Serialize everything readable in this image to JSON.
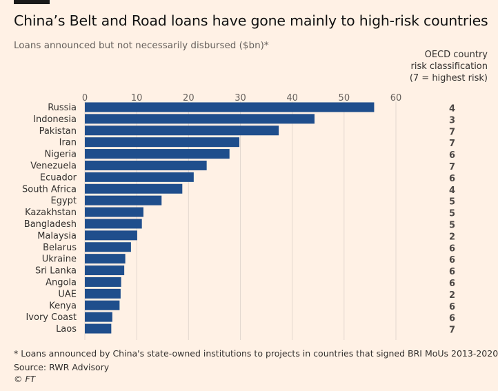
{
  "title": "China’s Belt and Road loans have gone mainly to high-risk countries",
  "subtitle": "Loans announced but not necessarily disbursed ($bn)*",
  "risk_header": {
    "line1": "OECD country",
    "line2": "risk classification",
    "line3": "(7 = highest risk)"
  },
  "footnote": "* Loans announced by China's state-owned institutions to projects in countries that signed BRI MoUs 2013-2020",
  "source": "Source: RWR Advisory",
  "credit_symbol": "©",
  "credit_name": "FT",
  "colors": {
    "bar": "#1F4E8C",
    "grid": "#E3D8CF",
    "background": "#FFF1E5"
  },
  "chart_data": {
    "type": "bar",
    "orientation": "horizontal",
    "categories": [
      "Russia",
      "Indonesia",
      "Pakistan",
      "Iran",
      "Nigeria",
      "Venezuela",
      "Ecuador",
      "South Africa",
      "Egypt",
      "Kazakhstan",
      "Bangladesh",
      "Malaysia",
      "Belarus",
      "Ukraine",
      "Sri Lanka",
      "Angola",
      "UAE",
      "Kenya",
      "Ivory Coast",
      "Laos"
    ],
    "values": [
      55.8,
      44.3,
      37.4,
      29.8,
      27.9,
      23.5,
      21.0,
      18.8,
      14.8,
      11.3,
      11.0,
      10.1,
      8.9,
      7.8,
      7.6,
      7.0,
      6.9,
      6.7,
      5.3,
      5.1
    ],
    "risk_classification": [
      4,
      3,
      7,
      7,
      6,
      7,
      6,
      4,
      5,
      5,
      5,
      2,
      6,
      6,
      6,
      6,
      2,
      6,
      6,
      7
    ],
    "xlim": [
      0,
      60
    ],
    "xticks": [
      0,
      10,
      20,
      30,
      40,
      50,
      60
    ],
    "grid": true,
    "axis_position": "top"
  }
}
